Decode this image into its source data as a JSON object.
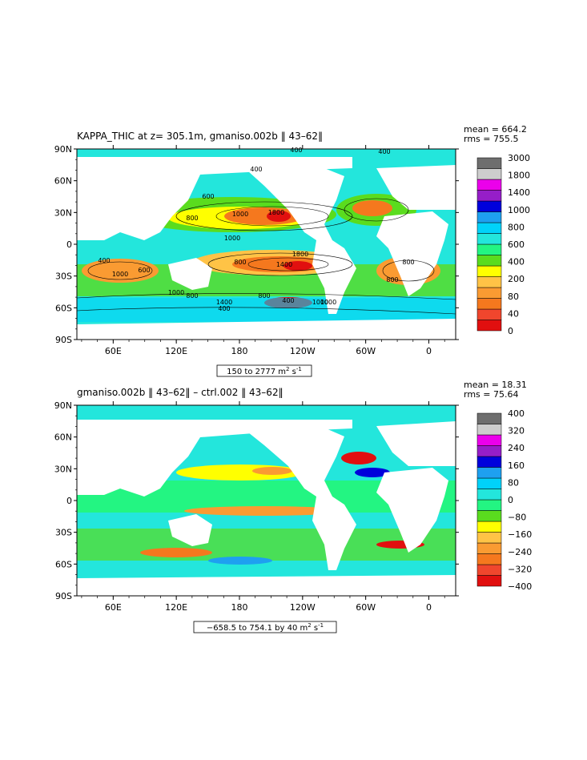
{
  "chart_data": [
    {
      "type": "heatmap",
      "title": "KAPPA_THIC at z= 305.1m, gmaniso.002b ‖ 43–62‖",
      "stats": [
        "mean = 664.2",
        "rms = 755.5"
      ],
      "y_ticks": [
        "90N",
        "60N",
        "30N",
        "0",
        "30S",
        "60S",
        "90S"
      ],
      "x_ticks": [
        "60E",
        "120E",
        "180",
        "120W",
        "60W",
        "0"
      ],
      "range_label_pre": "150 to 2777 m",
      "range_label_post": " s",
      "range_label_sup1": "2",
      "range_label_sup2": "-1",
      "colorbar": {
        "labels": [
          "3000",
          "1800",
          "1400",
          "1000",
          "800",
          "600",
          "400",
          "200",
          "80",
          "40",
          "0"
        ],
        "colors": [
          "#e10f0f",
          "#f0462d",
          "#f5781e",
          "#fa9b32",
          "#ffc346",
          "#ffff00",
          "#5adc1e",
          "#23f582",
          "#23e6dc",
          "#00d2fa",
          "#1ea0f0",
          "#0000dc",
          "#961ec8",
          "#eb00eb",
          "#cdcdcd",
          "#6e6e6e"
        ]
      },
      "contour_labels": [
        "400",
        "400",
        "400",
        "600",
        "1000",
        "1800",
        "800",
        "1000",
        "1800",
        "1400",
        "800",
        "400",
        "1000",
        "600",
        "1000",
        "800",
        "1400",
        "400",
        "800",
        "400",
        "1000",
        "1000",
        "800",
        "800"
      ]
    },
    {
      "type": "heatmap",
      "title": "gmaniso.002b ‖ 43–62‖ – ctrl.002 ‖ 43–62‖",
      "stats": [
        "mean = 18.31",
        "rms = 75.64"
      ],
      "y_ticks": [
        "90N",
        "60N",
        "30N",
        "0",
        "30S",
        "60S",
        "90S"
      ],
      "x_ticks": [
        "60E",
        "120E",
        "180",
        "120W",
        "60W",
        "0"
      ],
      "range_label_pre": "−658.5 to 754.1 by 40 m",
      "range_label_post": " s",
      "range_label_sup1": "2",
      "range_label_sup2": "-1",
      "colorbar": {
        "labels": [
          "400",
          "320",
          "240",
          "160",
          "80",
          "0",
          "−80",
          "−160",
          "−240",
          "−320",
          "−400"
        ],
        "colors": [
          "#e10f0f",
          "#f0462d",
          "#f5781e",
          "#fa9b32",
          "#ffc346",
          "#ffff00",
          "#5adc1e",
          "#23f582",
          "#23e6dc",
          "#00d2fa",
          "#1ea0f0",
          "#0000dc",
          "#961ec8",
          "#eb00eb",
          "#cdcdcd",
          "#6e6e6e"
        ]
      }
    }
  ]
}
